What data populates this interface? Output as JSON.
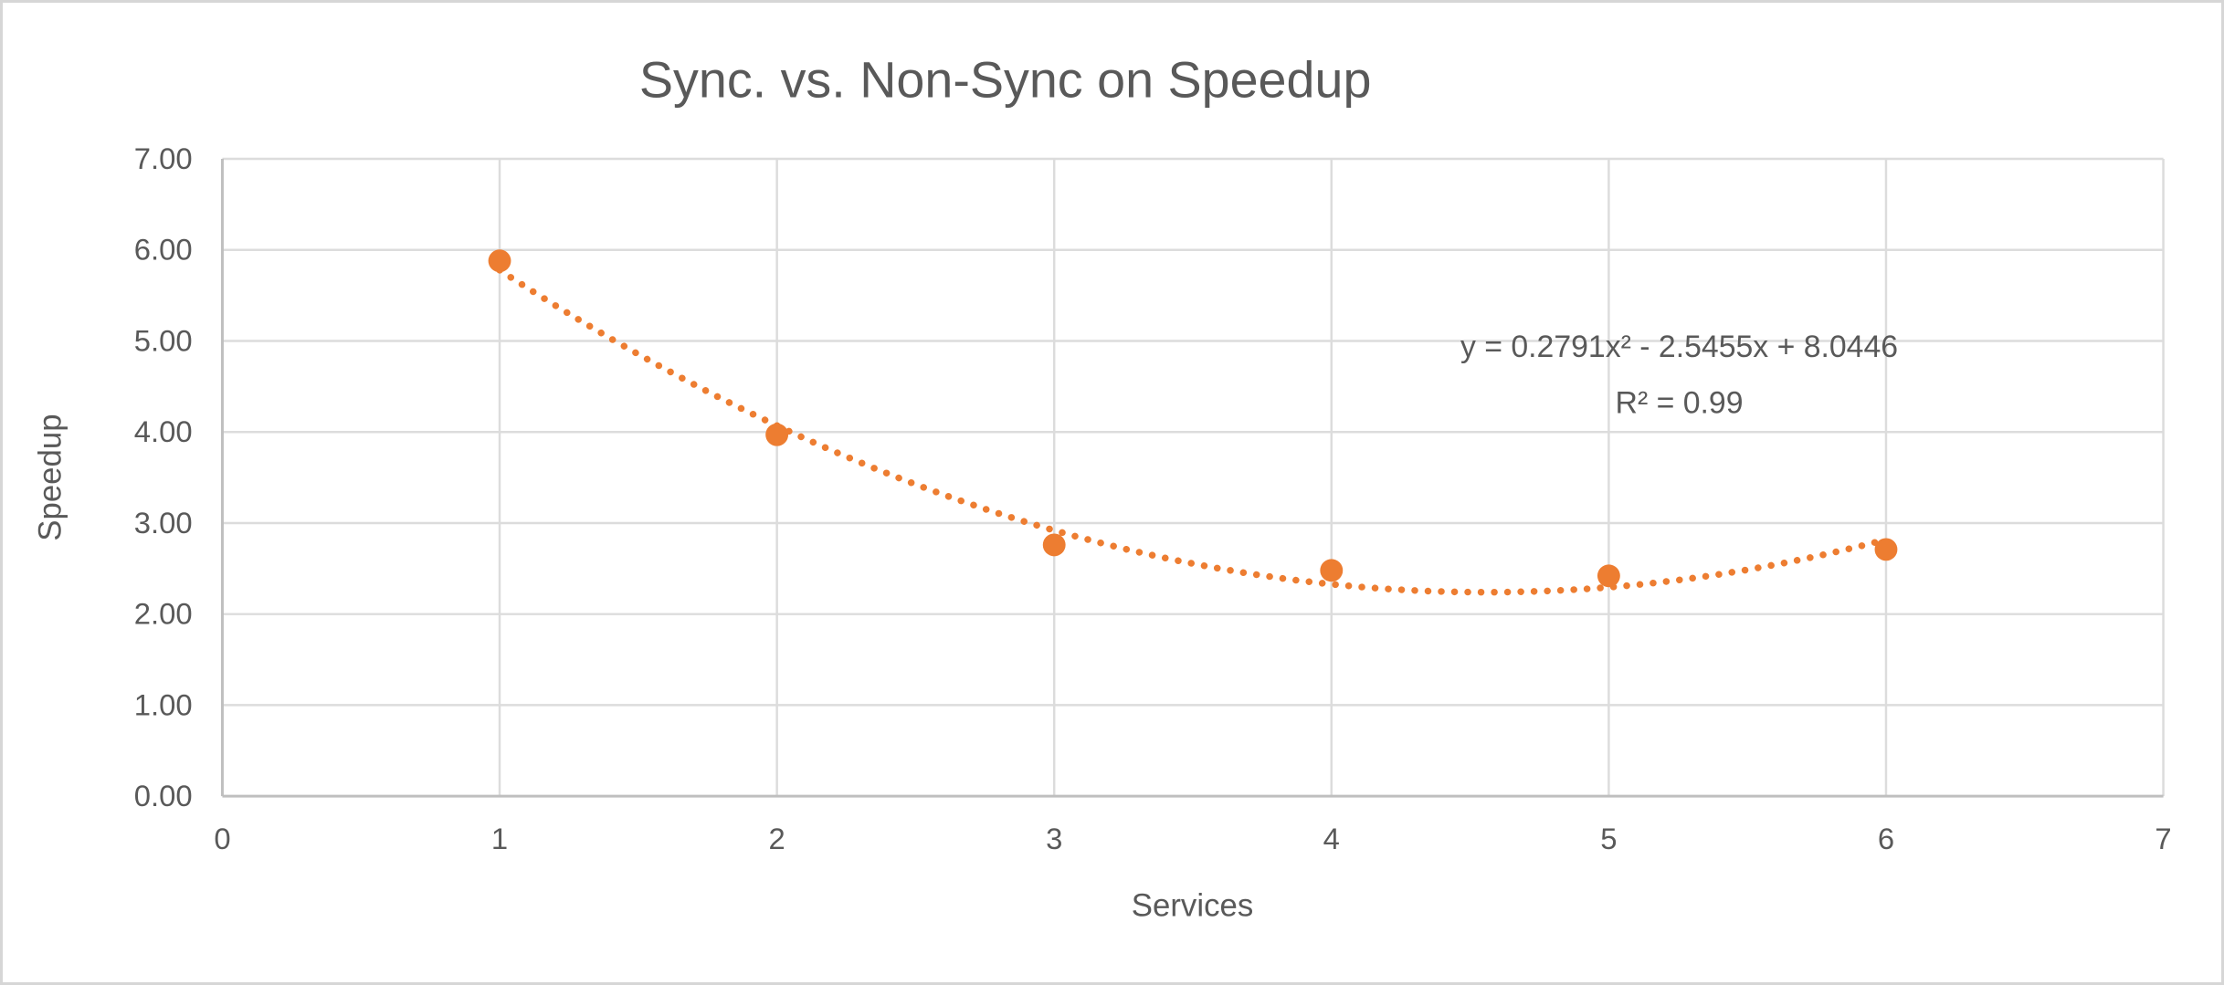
{
  "chart_data": {
    "type": "scatter",
    "title": "Sync. vs. Non-Sync on Speedup",
    "xlabel": "Services",
    "ylabel": "Speedup",
    "x": [
      1,
      2,
      3,
      4,
      5,
      6
    ],
    "y": [
      5.88,
      3.97,
      2.76,
      2.48,
      2.42,
      2.71
    ],
    "xlim": [
      0,
      7
    ],
    "ylim": [
      0,
      7
    ],
    "x_ticks": [
      "0",
      "1",
      "2",
      "3",
      "4",
      "5",
      "6",
      "7"
    ],
    "y_ticks": [
      "0.00",
      "1.00",
      "2.00",
      "3.00",
      "4.00",
      "5.00",
      "6.00",
      "7.00"
    ],
    "grid": true,
    "legend": "none",
    "marker_color": "#ed7d31",
    "gridline_color": "#dcdcdc",
    "axis_line_color": "#bfbfbf",
    "text_color": "#595959",
    "background_color": "#ffffff",
    "frame_border_color": "#d6d6d6",
    "trendline": {
      "type": "polynomial",
      "degree": 2,
      "coefficients": {
        "a": 0.2791,
        "b": -2.5455,
        "c": 8.0446
      },
      "x_range": [
        1,
        6
      ],
      "style": "dotted",
      "color": "#ed7d31"
    },
    "annotation": {
      "equation": "y = 0.2791x² - 2.5455x + 8.0446",
      "r_squared": "R² = 0.99"
    }
  }
}
